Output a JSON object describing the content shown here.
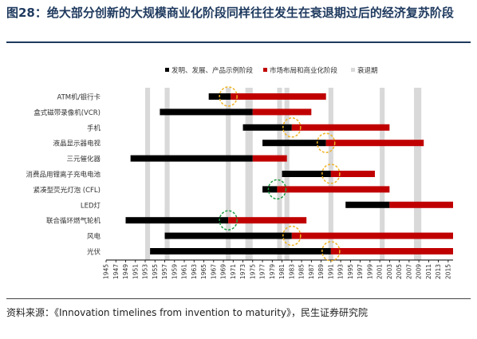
{
  "title": "图28：绝大部分创新的大规模商业化阶段同样往往发生在衰退期过后的经济复苏阶段",
  "source": "资料来源：《Innovation timelines from invention to maturity》，民生证券研究院",
  "colors": {
    "black_stage": "#000000",
    "red_stage": "#c00000",
    "recession": "#d9d9d9",
    "circle_yellow": "#f0b323",
    "circle_green": "#1f9e45",
    "axis": "#000000"
  },
  "chart_data": {
    "type": "bar",
    "subtype": "gantt-timeline",
    "legend": [
      "发明、发展、产品示例阶段",
      "市场布局和商业化阶段",
      "衰退期"
    ],
    "legend_position": "top-center",
    "xlim": [
      1945,
      2016
    ],
    "x_ticks": [
      "1945",
      "1947",
      "1949",
      "1951",
      "1953",
      "1955",
      "1957",
      "1959",
      "1961",
      "1963",
      "1965",
      "1967",
      "1969",
      "1971",
      "1973",
      "1975",
      "1977",
      "1979",
      "1981",
      "1983",
      "1985",
      "1987",
      "1989",
      "1991",
      "1993",
      "1995",
      "1997",
      "1999",
      "2001",
      "2003",
      "2005",
      "2007",
      "2009",
      "2011",
      "2013",
      "2015"
    ],
    "recessions": [
      [
        1953,
        1954
      ],
      [
        1957,
        1958
      ],
      [
        1969.5,
        1970.5
      ],
      [
        1973.5,
        1975
      ],
      [
        1980,
        1981
      ],
      [
        1981.5,
        1982.5
      ],
      [
        1990.5,
        1991.5
      ],
      [
        2001,
        2002
      ],
      [
        2008,
        2009.5
      ]
    ],
    "items": [
      {
        "name": "ATM机/银行卡",
        "black": [
          1966,
          1970.5
        ],
        "red": [
          1970.5,
          1990
        ],
        "circle": 1970,
        "circle_color": "yellow"
      },
      {
        "name": "盒式磁带录像机(VCR)",
        "black": [
          1956,
          1975
        ],
        "red": [
          1975,
          1987
        ],
        "circle": null,
        "circle_color": null
      },
      {
        "name": "手机",
        "black": [
          1973,
          1983
        ],
        "red": [
          1983,
          2003
        ],
        "circle": 1983,
        "circle_color": "yellow"
      },
      {
        "name": "液晶显示器电视",
        "black": [
          1977,
          1990
        ],
        "red": [
          1990,
          2010
        ],
        "circle": 1990,
        "circle_color": "yellow"
      },
      {
        "name": "三元催化器",
        "black": [
          1950,
          1975
        ],
        "red": [
          1975,
          1982
        ],
        "circle": null,
        "circle_color": null
      },
      {
        "name": "消费品用锂离子充电电池",
        "black": [
          1981,
          1991
        ],
        "red": [
          1991,
          2000
        ],
        "circle": 1991,
        "circle_color": "yellow"
      },
      {
        "name": "紧凑型荧光灯泡 (CFL)",
        "black": [
          1977,
          1980
        ],
        "red": [
          1980,
          2003
        ],
        "circle": 1980,
        "circle_color": "green"
      },
      {
        "name": "LED灯",
        "black": [
          1994,
          2003
        ],
        "red": [
          2003,
          2016
        ],
        "circle": null,
        "circle_color": null
      },
      {
        "name": "联合循环燃气轮机",
        "black": [
          1949,
          1970
        ],
        "red": [
          1970,
          1986
        ],
        "circle": 1970,
        "circle_color": "green"
      },
      {
        "name": "风电",
        "black": [
          1957,
          1983
        ],
        "red": [
          1983,
          2016
        ],
        "circle": 1983,
        "circle_color": "yellow"
      },
      {
        "name": "光伏",
        "black": [
          1954,
          1991
        ],
        "red": [
          1991,
          2016
        ],
        "circle": 1991,
        "circle_color": "yellow"
      }
    ]
  }
}
